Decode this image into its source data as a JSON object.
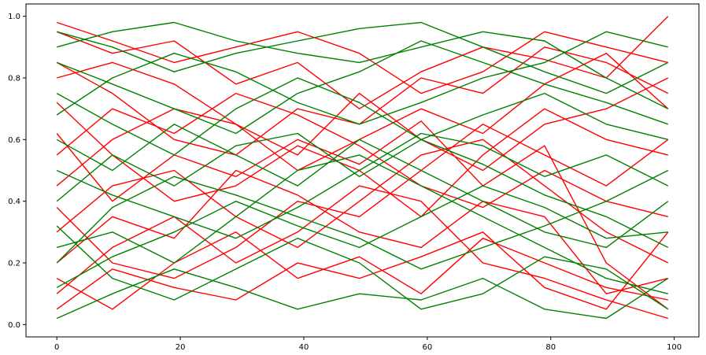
{
  "chart_data": {
    "type": "line",
    "title": "",
    "xlabel": "",
    "ylabel": "",
    "xlim": [
      -5,
      104
    ],
    "ylim": [
      -0.04,
      1.04
    ],
    "x_ticks": [
      0,
      20,
      40,
      60,
      80,
      100
    ],
    "x_tick_labels": [
      "0",
      "20",
      "40",
      "60",
      "80",
      "100"
    ],
    "y_ticks": [
      0.0,
      0.2,
      0.4,
      0.6,
      0.8,
      1.0
    ],
    "y_tick_labels": [
      "0.0",
      "0.2",
      "0.4",
      "0.6",
      "0.8",
      "1.0"
    ],
    "grid": false,
    "legend": "none",
    "x": [
      0,
      9,
      19,
      29,
      39,
      49,
      59,
      69,
      79,
      89,
      99
    ],
    "colors": {
      "red": "#ff0000",
      "green": "#008000"
    },
    "series": [
      {
        "color": "red",
        "values": [
          0.95,
          0.88,
          0.92,
          0.78,
          0.85,
          0.7,
          0.82,
          0.9,
          0.86,
          0.8,
          1.0
        ]
      },
      {
        "color": "red",
        "values": [
          0.62,
          0.4,
          0.55,
          0.48,
          0.6,
          0.52,
          0.66,
          0.45,
          0.58,
          0.2,
          0.05
        ]
      },
      {
        "color": "red",
        "values": [
          0.2,
          0.35,
          0.28,
          0.5,
          0.42,
          0.3,
          0.25,
          0.4,
          0.35,
          0.1,
          0.15
        ]
      },
      {
        "color": "red",
        "values": [
          0.05,
          0.18,
          0.12,
          0.08,
          0.2,
          0.15,
          0.22,
          0.3,
          0.12,
          0.05,
          0.3
        ]
      },
      {
        "color": "red",
        "values": [
          0.45,
          0.6,
          0.7,
          0.65,
          0.55,
          0.75,
          0.6,
          0.5,
          0.65,
          0.7,
          0.8
        ]
      },
      {
        "color": "red",
        "values": [
          0.85,
          0.75,
          0.6,
          0.55,
          0.7,
          0.65,
          0.8,
          0.75,
          0.9,
          0.85,
          0.75
        ]
      },
      {
        "color": "red",
        "values": [
          0.3,
          0.45,
          0.5,
          0.35,
          0.25,
          0.4,
          0.55,
          0.6,
          0.45,
          0.3,
          0.2
        ]
      },
      {
        "color": "red",
        "values": [
          0.72,
          0.55,
          0.4,
          0.45,
          0.58,
          0.5,
          0.35,
          0.55,
          0.7,
          0.6,
          0.55
        ]
      },
      {
        "color": "red",
        "values": [
          0.1,
          0.25,
          0.35,
          0.2,
          0.3,
          0.45,
          0.4,
          0.2,
          0.15,
          0.08,
          0.02
        ]
      },
      {
        "color": "red",
        "values": [
          0.98,
          0.92,
          0.85,
          0.9,
          0.95,
          0.88,
          0.75,
          0.82,
          0.95,
          0.9,
          0.85
        ]
      },
      {
        "color": "red",
        "values": [
          0.55,
          0.7,
          0.62,
          0.75,
          0.68,
          0.58,
          0.45,
          0.38,
          0.5,
          0.4,
          0.35
        ]
      },
      {
        "color": "red",
        "values": [
          0.38,
          0.2,
          0.15,
          0.25,
          0.4,
          0.35,
          0.5,
          0.65,
          0.55,
          0.45,
          0.6
        ]
      },
      {
        "color": "red",
        "values": [
          0.8,
          0.85,
          0.78,
          0.65,
          0.5,
          0.6,
          0.7,
          0.62,
          0.78,
          0.88,
          0.7
        ]
      },
      {
        "color": "red",
        "values": [
          0.15,
          0.05,
          0.2,
          0.3,
          0.15,
          0.22,
          0.1,
          0.28,
          0.2,
          0.12,
          0.08
        ]
      },
      {
        "color": "green",
        "values": [
          0.9,
          0.95,
          0.98,
          0.92,
          0.88,
          0.85,
          0.9,
          0.95,
          0.92,
          0.8,
          0.7
        ]
      },
      {
        "color": "green",
        "values": [
          0.6,
          0.5,
          0.65,
          0.55,
          0.45,
          0.6,
          0.5,
          0.4,
          0.3,
          0.25,
          0.4
        ]
      },
      {
        "color": "green",
        "values": [
          0.25,
          0.3,
          0.2,
          0.35,
          0.5,
          0.55,
          0.45,
          0.35,
          0.25,
          0.15,
          0.1
        ]
      },
      {
        "color": "green",
        "values": [
          0.02,
          0.1,
          0.18,
          0.12,
          0.05,
          0.1,
          0.08,
          0.15,
          0.05,
          0.02,
          0.15
        ]
      },
      {
        "color": "green",
        "values": [
          0.75,
          0.65,
          0.55,
          0.7,
          0.8,
          0.72,
          0.6,
          0.68,
          0.75,
          0.65,
          0.6
        ]
      },
      {
        "color": "green",
        "values": [
          0.4,
          0.55,
          0.45,
          0.58,
          0.62,
          0.48,
          0.6,
          0.52,
          0.42,
          0.35,
          0.25
        ]
      },
      {
        "color": "green",
        "values": [
          0.85,
          0.78,
          0.7,
          0.62,
          0.75,
          0.82,
          0.92,
          0.85,
          0.78,
          0.72,
          0.65
        ]
      },
      {
        "color": "green",
        "values": [
          0.12,
          0.22,
          0.3,
          0.4,
          0.32,
          0.25,
          0.35,
          0.45,
          0.38,
          0.28,
          0.3
        ]
      },
      {
        "color": "green",
        "values": [
          0.5,
          0.42,
          0.35,
          0.28,
          0.38,
          0.5,
          0.62,
          0.58,
          0.48,
          0.55,
          0.45
        ]
      },
      {
        "color": "green",
        "values": [
          0.68,
          0.8,
          0.88,
          0.82,
          0.72,
          0.65,
          0.72,
          0.8,
          0.85,
          0.95,
          0.9
        ]
      },
      {
        "color": "green",
        "values": [
          0.32,
          0.15,
          0.08,
          0.18,
          0.28,
          0.2,
          0.05,
          0.1,
          0.22,
          0.18,
          0.05
        ]
      },
      {
        "color": "green",
        "values": [
          0.95,
          0.9,
          0.82,
          0.88,
          0.92,
          0.96,
          0.98,
          0.9,
          0.82,
          0.75,
          0.85
        ]
      },
      {
        "color": "green",
        "values": [
          0.2,
          0.38,
          0.48,
          0.42,
          0.35,
          0.28,
          0.18,
          0.25,
          0.32,
          0.4,
          0.5
        ]
      }
    ]
  }
}
